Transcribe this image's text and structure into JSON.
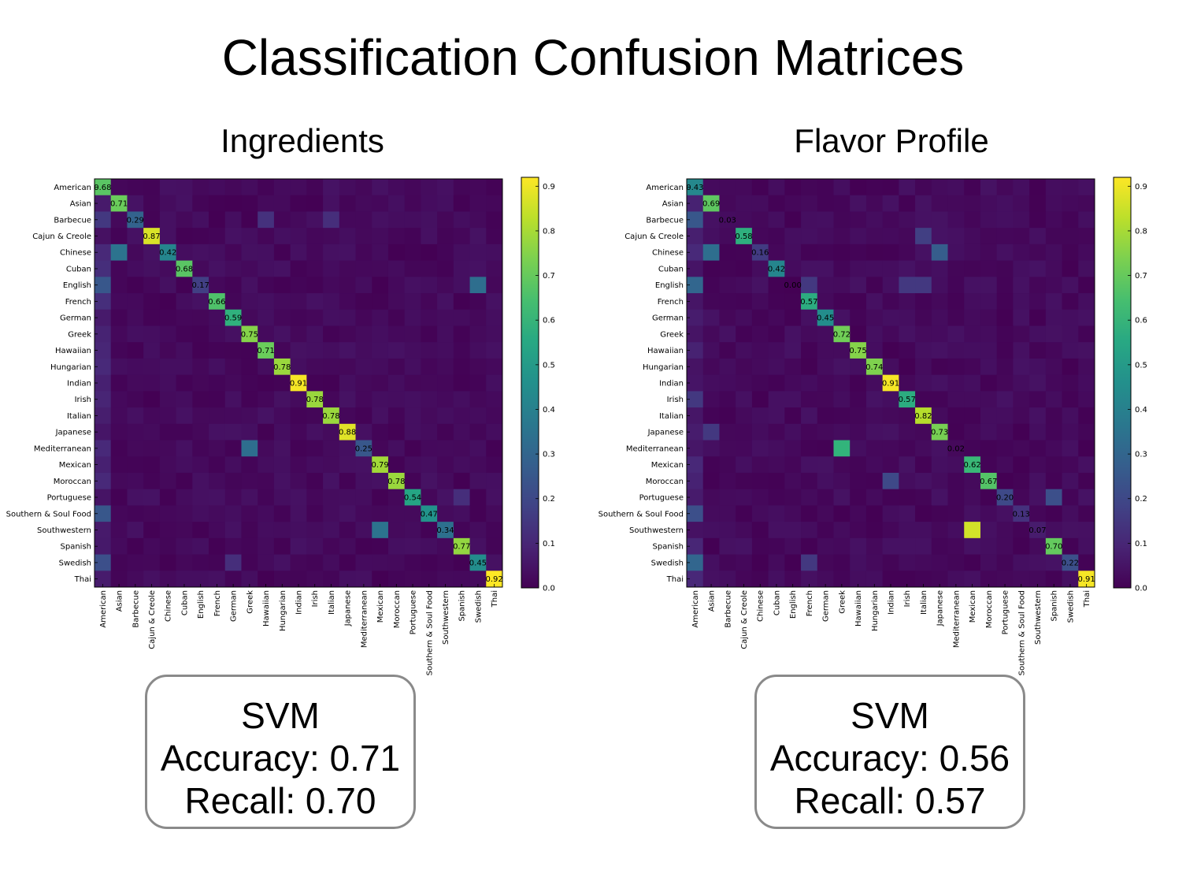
{
  "title": "Classification Confusion Matrices",
  "colorscale": {
    "name": "viridis",
    "low": "#440154",
    "high": "#fde725"
  },
  "panels": [
    {
      "title": "Ingredients",
      "model": "SVM",
      "accuracy": "Accuracy: 0.71",
      "recall": "Recall: 0.70"
    },
    {
      "title": "Flavor Profile",
      "model": "SVM",
      "accuracy": "Accuracy: 0.56",
      "recall": "Recall: 0.57"
    }
  ],
  "chart_data": [
    {
      "type": "heatmap",
      "title": "Ingredients",
      "categories": [
        "American",
        "Asian",
        "Barbecue",
        "Cajun & Creole",
        "Chinese",
        "Cuban",
        "English",
        "French",
        "German",
        "Greek",
        "Hawaiian",
        "Hungarian",
        "Indian",
        "Irish",
        "Italian",
        "Japanese",
        "Mediterranean",
        "Mexican",
        "Moroccan",
        "Portuguese",
        "Southern & Soul Food",
        "Southwestern",
        "Spanish",
        "Swedish",
        "Thai"
      ],
      "diagonal": [
        0.68,
        0.71,
        0.29,
        0.87,
        0.42,
        0.68,
        0.17,
        0.66,
        0.59,
        0.75,
        0.71,
        0.78,
        0.91,
        0.78,
        0.78,
        0.88,
        0.25,
        0.79,
        0.78,
        0.54,
        0.47,
        0.34,
        0.77,
        0.45,
        0.92
      ],
      "off_diagonal": [
        {
          "row": "Chinese",
          "col": "Asian",
          "value": 0.35
        },
        {
          "row": "English",
          "col": "American",
          "value": 0.25
        },
        {
          "row": "English",
          "col": "Swedish",
          "value": 0.33
        },
        {
          "row": "Mediterranean",
          "col": "Greek",
          "value": 0.33
        },
        {
          "row": "Southwestern",
          "col": "Mexican",
          "value": 0.35
        },
        {
          "row": "Southern & Soul Food",
          "col": "American",
          "value": 0.25
        },
        {
          "row": "Swedish",
          "col": "American",
          "value": 0.22
        },
        {
          "row": "Swedish",
          "col": "German",
          "value": 0.12
        },
        {
          "row": "Barbecue",
          "col": "American",
          "value": 0.15
        },
        {
          "row": "Barbecue",
          "col": "Hawaiian",
          "value": 0.13
        },
        {
          "row": "Barbecue",
          "col": "Italian",
          "value": 0.12
        },
        {
          "row": "Cuban",
          "col": "American",
          "value": 0.12
        },
        {
          "row": "French",
          "col": "American",
          "value": 0.12
        },
        {
          "row": "Portuguese",
          "col": "Spanish",
          "value": 0.12
        }
      ],
      "colorbar_ticks": [
        "0.0",
        "0.1",
        "0.2",
        "0.3",
        "0.4",
        "0.5",
        "0.6",
        "0.7",
        "0.8",
        "0.9"
      ],
      "vmin": 0,
      "vmax": 0.92
    },
    {
      "type": "heatmap",
      "title": "Flavor Profile",
      "categories": [
        "American",
        "Asian",
        "Barbecue",
        "Cajun & Creole",
        "Chinese",
        "Cuban",
        "English",
        "French",
        "German",
        "Greek",
        "Hawaiian",
        "Hungarian",
        "Indian",
        "Irish",
        "Italian",
        "Japanese",
        "Mediterranean",
        "Mexican",
        "Moroccan",
        "Portuguese",
        "Southern & Soul Food",
        "Southwestern",
        "Spanish",
        "Swedish",
        "Thai"
      ],
      "diagonal": [
        0.43,
        0.69,
        0.03,
        0.58,
        0.16,
        0.42,
        0.0,
        0.57,
        0.45,
        0.72,
        0.75,
        0.74,
        0.91,
        0.57,
        0.82,
        0.73,
        0.02,
        0.62,
        0.67,
        0.2,
        0.13,
        0.07,
        0.7,
        0.22,
        0.91
      ],
      "off_diagonal": [
        {
          "row": "Southwestern",
          "col": "Mexican",
          "value": 0.86
        },
        {
          "row": "Mediterranean",
          "col": "Greek",
          "value": 0.6
        },
        {
          "row": "Chinese",
          "col": "Asian",
          "value": 0.33
        },
        {
          "row": "Chinese",
          "col": "Japanese",
          "value": 0.27
        },
        {
          "row": "English",
          "col": "American",
          "value": 0.3
        },
        {
          "row": "Barbecue",
          "col": "American",
          "value": 0.25
        },
        {
          "row": "Swedish",
          "col": "American",
          "value": 0.3
        },
        {
          "row": "Southern & Soul Food",
          "col": "American",
          "value": 0.22
        },
        {
          "row": "Moroccan",
          "col": "Indian",
          "value": 0.2
        },
        {
          "row": "Portuguese",
          "col": "Spanish",
          "value": 0.22
        },
        {
          "row": "English",
          "col": "French",
          "value": 0.15
        },
        {
          "row": "English",
          "col": "Irish",
          "value": 0.15
        },
        {
          "row": "English",
          "col": "Italian",
          "value": 0.15
        },
        {
          "row": "Cajun & Creole",
          "col": "Italian",
          "value": 0.17
        },
        {
          "row": "Irish",
          "col": "American",
          "value": 0.15
        },
        {
          "row": "Japanese",
          "col": "Asian",
          "value": 0.15
        },
        {
          "row": "Swedish",
          "col": "French",
          "value": 0.15
        }
      ],
      "colorbar_ticks": [
        "0.0",
        "0.1",
        "0.2",
        "0.3",
        "0.4",
        "0.5",
        "0.6",
        "0.7",
        "0.8",
        "0.9"
      ],
      "vmin": 0,
      "vmax": 0.92
    }
  ]
}
